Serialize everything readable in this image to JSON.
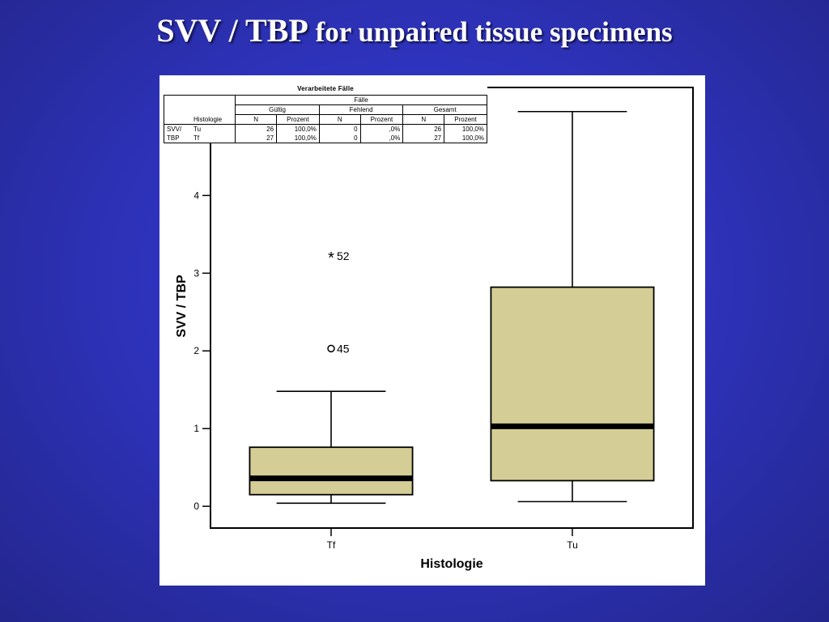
{
  "slide": {
    "title_part1": "SVV / TBP",
    "title_part2": " for unpaired tissue specimens"
  },
  "cases_table": {
    "title": "Verarbeitete Fälle",
    "group_header": "Fälle",
    "subgroups": [
      "Gültig",
      "Fehlend",
      "Gesamt"
    ],
    "row_header": "Histologie",
    "col_headers": [
      "N",
      "Prozent",
      "N",
      "Prozent",
      "N",
      "Prozent"
    ],
    "variable_label_line1": "SVV/",
    "variable_label_line2": "TBP",
    "rows": [
      {
        "group": "Tu",
        "cells": [
          "26",
          "100,0%",
          "0",
          ",0%",
          "26",
          "100,0%"
        ]
      },
      {
        "group": "Tf",
        "cells": [
          "27",
          "100,0%",
          "0",
          ",0%",
          "27",
          "100,0%"
        ]
      }
    ]
  },
  "chart_data": {
    "type": "box",
    "xlabel": "Histologie",
    "ylabel": "SVV / TBP",
    "categories": [
      "Tf",
      "Tu"
    ],
    "yticks": [
      0,
      1,
      2,
      3,
      4
    ],
    "ylim": [
      -0.28,
      5.39
    ],
    "boxes": [
      {
        "category": "Tf",
        "whisker_low": 0.04,
        "q1": 0.15,
        "median": 0.36,
        "q3": 0.76,
        "whisker_high": 1.48,
        "fill": "#d4ce96",
        "outliers": [
          {
            "value": 2.03,
            "label": "45",
            "symbol": "circle"
          },
          {
            "value": 3.22,
            "label": "52",
            "symbol": "star"
          }
        ]
      },
      {
        "category": "Tu",
        "whisker_low": 0.06,
        "q1": 0.33,
        "median": 1.03,
        "q3": 2.82,
        "whisker_high": 5.08,
        "fill": "#d4ce96",
        "outliers": []
      }
    ],
    "grid": false,
    "legend": "none"
  },
  "colors": {
    "background": "#2e33bd",
    "title_text": "#ffffff",
    "box_fill": "#d4ce96",
    "lines": "#000000"
  }
}
